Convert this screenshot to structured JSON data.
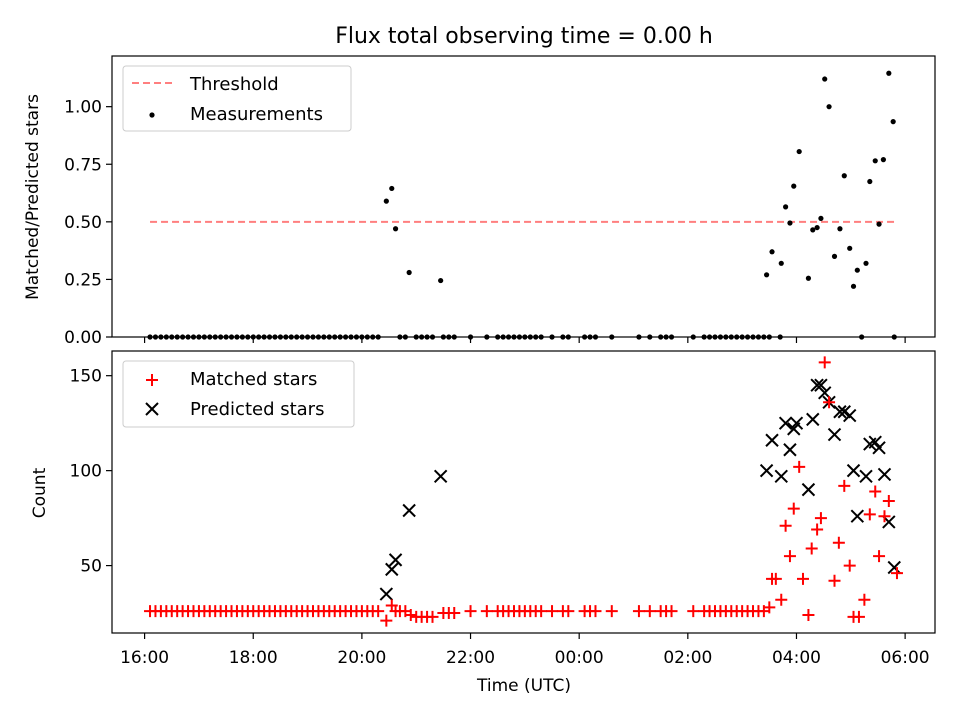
{
  "figure": {
    "title": "Flux total observing time = 0.00 h",
    "xlabel": "Time (UTC)",
    "xticks": [
      {
        "h": 16.0,
        "label": "16:00"
      },
      {
        "h": 18.0,
        "label": "18:00"
      },
      {
        "h": 20.0,
        "label": "20:00"
      },
      {
        "h": 22.0,
        "label": "22:00"
      },
      {
        "h": 24.0,
        "label": "00:00"
      },
      {
        "h": 26.0,
        "label": "02:00"
      },
      {
        "h": 28.0,
        "label": "04:00"
      },
      {
        "h": 30.0,
        "label": "06:00"
      }
    ],
    "xlim": [
      15.4,
      30.55
    ]
  },
  "chart_data": [
    {
      "type": "scatter",
      "panel": "top",
      "ylabel": "Matched/Predicted stars",
      "ylim": [
        0,
        1.22
      ],
      "yticks": [
        {
          "v": 0,
          "label": "0.00"
        },
        {
          "v": 0.25,
          "label": "0.25"
        },
        {
          "v": 0.5,
          "label": "0.50"
        },
        {
          "v": 0.75,
          "label": "0.75"
        },
        {
          "v": 1.0,
          "label": "1.00"
        }
      ],
      "legend": {
        "position": "top-left",
        "entries": [
          "Threshold",
          "Measurements"
        ]
      },
      "threshold": {
        "name": "Threshold",
        "value": 0.5,
        "x_range": [
          16.1,
          29.85
        ],
        "color": "#ff7f7f"
      },
      "measurements": {
        "name": "Measurements",
        "color": "#000000",
        "zero_x": [
          16.1,
          16.2,
          16.3,
          16.4,
          16.5,
          16.6,
          16.7,
          16.8,
          16.9,
          17.0,
          17.1,
          17.2,
          17.3,
          17.4,
          17.5,
          17.6,
          17.7,
          17.8,
          17.9,
          18.0,
          18.1,
          18.2,
          18.3,
          18.4,
          18.5,
          18.6,
          18.7,
          18.8,
          18.9,
          19.0,
          19.1,
          19.2,
          19.3,
          19.4,
          19.5,
          19.6,
          19.7,
          19.8,
          19.9,
          20.0,
          20.1,
          20.2,
          20.3,
          20.7,
          20.8,
          21.0,
          21.1,
          21.2,
          21.3,
          21.5,
          21.6,
          21.7,
          22.0,
          22.3,
          22.5,
          22.6,
          22.7,
          22.8,
          22.9,
          23.0,
          23.1,
          23.2,
          23.3,
          23.5,
          23.7,
          23.8,
          24.1,
          24.2,
          24.3,
          24.6,
          25.1,
          25.3,
          25.5,
          25.6,
          25.7,
          26.1,
          26.3,
          26.4,
          26.5,
          26.6,
          26.7,
          26.8,
          26.9,
          27.0,
          27.1,
          27.2,
          27.3,
          27.4,
          27.5,
          27.7,
          29.2,
          29.8
        ],
        "points": [
          {
            "x": 20.45,
            "y": 0.59
          },
          {
            "x": 20.55,
            "y": 0.645
          },
          {
            "x": 20.62,
            "y": 0.47
          },
          {
            "x": 20.87,
            "y": 0.28
          },
          {
            "x": 21.45,
            "y": 0.245
          },
          {
            "x": 27.45,
            "y": 0.27
          },
          {
            "x": 27.55,
            "y": 0.37
          },
          {
            "x": 27.72,
            "y": 0.32
          },
          {
            "x": 27.8,
            "y": 0.565
          },
          {
            "x": 27.88,
            "y": 0.495
          },
          {
            "x": 27.95,
            "y": 0.655
          },
          {
            "x": 28.05,
            "y": 0.805
          },
          {
            "x": 28.22,
            "y": 0.255
          },
          {
            "x": 28.3,
            "y": 0.465
          },
          {
            "x": 28.38,
            "y": 0.475
          },
          {
            "x": 28.45,
            "y": 0.515
          },
          {
            "x": 28.52,
            "y": 1.12
          },
          {
            "x": 28.6,
            "y": 1.0
          },
          {
            "x": 28.7,
            "y": 0.35
          },
          {
            "x": 28.8,
            "y": 0.47
          },
          {
            "x": 28.88,
            "y": 0.7
          },
          {
            "x": 28.98,
            "y": 0.385
          },
          {
            "x": 29.05,
            "y": 0.22
          },
          {
            "x": 29.12,
            "y": 0.29
          },
          {
            "x": 29.28,
            "y": 0.32
          },
          {
            "x": 29.35,
            "y": 0.675
          },
          {
            "x": 29.45,
            "y": 0.765
          },
          {
            "x": 29.52,
            "y": 0.49
          },
          {
            "x": 29.6,
            "y": 0.77
          },
          {
            "x": 29.7,
            "y": 1.145
          },
          {
            "x": 29.78,
            "y": 0.935
          }
        ]
      }
    },
    {
      "type": "scatter",
      "panel": "bottom",
      "ylabel": "Count",
      "ylim": [
        14.5,
        163
      ],
      "yticks": [
        {
          "v": 50,
          "label": "50"
        },
        {
          "v": 100,
          "label": "100"
        },
        {
          "v": 150,
          "label": "150"
        }
      ],
      "legend": {
        "position": "top-left",
        "entries": [
          "Matched stars",
          "Predicted stars"
        ]
      },
      "matched": {
        "name": "Matched stars",
        "color": "#ff0000",
        "marker": "plus",
        "baseline_value": 26,
        "baseline_x": [
          16.1,
          16.2,
          16.3,
          16.4,
          16.5,
          16.6,
          16.7,
          16.8,
          16.9,
          17.0,
          17.1,
          17.2,
          17.3,
          17.4,
          17.5,
          17.6,
          17.7,
          17.8,
          17.9,
          18.0,
          18.1,
          18.2,
          18.3,
          18.4,
          18.5,
          18.6,
          18.7,
          18.8,
          18.9,
          19.0,
          19.1,
          19.2,
          19.3,
          19.4,
          19.5,
          19.6,
          19.7,
          19.8,
          19.9,
          20.0,
          20.1,
          20.2,
          20.3,
          20.7,
          20.8,
          22.0,
          22.3,
          22.5,
          22.6,
          22.7,
          22.8,
          22.9,
          23.0,
          23.1,
          23.2,
          23.3,
          23.5,
          23.7,
          23.8,
          24.1,
          24.2,
          24.3,
          24.6,
          25.1,
          25.3,
          25.5,
          25.6,
          25.7,
          26.1,
          26.3,
          26.4,
          26.5,
          26.6,
          26.7,
          26.8,
          26.9,
          27.0,
          27.1,
          27.2,
          27.3,
          27.4
        ],
        "points": [
          {
            "x": 20.45,
            "y": 21
          },
          {
            "x": 20.55,
            "y": 29
          },
          {
            "x": 20.62,
            "y": 26
          },
          {
            "x": 20.9,
            "y": 24
          },
          {
            "x": 21.0,
            "y": 23
          },
          {
            "x": 21.1,
            "y": 23
          },
          {
            "x": 21.2,
            "y": 23
          },
          {
            "x": 21.3,
            "y": 23
          },
          {
            "x": 21.5,
            "y": 25
          },
          {
            "x": 21.6,
            "y": 25
          },
          {
            "x": 21.7,
            "y": 25
          },
          {
            "x": 27.5,
            "y": 28
          },
          {
            "x": 27.55,
            "y": 43
          },
          {
            "x": 27.62,
            "y": 43
          },
          {
            "x": 27.72,
            "y": 32
          },
          {
            "x": 27.8,
            "y": 71
          },
          {
            "x": 27.88,
            "y": 55
          },
          {
            "x": 27.95,
            "y": 80
          },
          {
            "x": 28.05,
            "y": 102
          },
          {
            "x": 28.12,
            "y": 43
          },
          {
            "x": 28.22,
            "y": 24
          },
          {
            "x": 28.28,
            "y": 59
          },
          {
            "x": 28.38,
            "y": 69
          },
          {
            "x": 28.45,
            "y": 75
          },
          {
            "x": 28.52,
            "y": 157
          },
          {
            "x": 28.6,
            "y": 136
          },
          {
            "x": 28.7,
            "y": 42
          },
          {
            "x": 28.78,
            "y": 62
          },
          {
            "x": 28.88,
            "y": 92
          },
          {
            "x": 28.98,
            "y": 50
          },
          {
            "x": 29.05,
            "y": 23
          },
          {
            "x": 29.15,
            "y": 23
          },
          {
            "x": 29.25,
            "y": 32
          },
          {
            "x": 29.35,
            "y": 77
          },
          {
            "x": 29.45,
            "y": 89
          },
          {
            "x": 29.52,
            "y": 55
          },
          {
            "x": 29.62,
            "y": 76
          },
          {
            "x": 29.7,
            "y": 84
          },
          {
            "x": 29.85,
            "y": 46
          }
        ]
      },
      "predicted": {
        "name": "Predicted stars",
        "color": "#000000",
        "marker": "x",
        "points": [
          {
            "x": 20.45,
            "y": 35
          },
          {
            "x": 20.55,
            "y": 48
          },
          {
            "x": 20.62,
            "y": 53
          },
          {
            "x": 20.87,
            "y": 79
          },
          {
            "x": 21.45,
            "y": 97
          },
          {
            "x": 27.45,
            "y": 100
          },
          {
            "x": 27.55,
            "y": 116
          },
          {
            "x": 27.72,
            "y": 97
          },
          {
            "x": 27.8,
            "y": 125
          },
          {
            "x": 27.88,
            "y": 111
          },
          {
            "x": 27.95,
            "y": 122
          },
          {
            "x": 28.0,
            "y": 125
          },
          {
            "x": 28.22,
            "y": 90
          },
          {
            "x": 28.3,
            "y": 127
          },
          {
            "x": 28.38,
            "y": 145
          },
          {
            "x": 28.45,
            "y": 145
          },
          {
            "x": 28.52,
            "y": 141
          },
          {
            "x": 28.6,
            "y": 136
          },
          {
            "x": 28.7,
            "y": 119
          },
          {
            "x": 28.8,
            "y": 131
          },
          {
            "x": 28.88,
            "y": 131
          },
          {
            "x": 28.98,
            "y": 129
          },
          {
            "x": 29.05,
            "y": 100
          },
          {
            "x": 29.12,
            "y": 76
          },
          {
            "x": 29.28,
            "y": 97
          },
          {
            "x": 29.35,
            "y": 114
          },
          {
            "x": 29.45,
            "y": 115
          },
          {
            "x": 29.52,
            "y": 112
          },
          {
            "x": 29.62,
            "y": 98
          },
          {
            "x": 29.7,
            "y": 73
          },
          {
            "x": 29.8,
            "y": 49
          }
        ]
      }
    }
  ]
}
